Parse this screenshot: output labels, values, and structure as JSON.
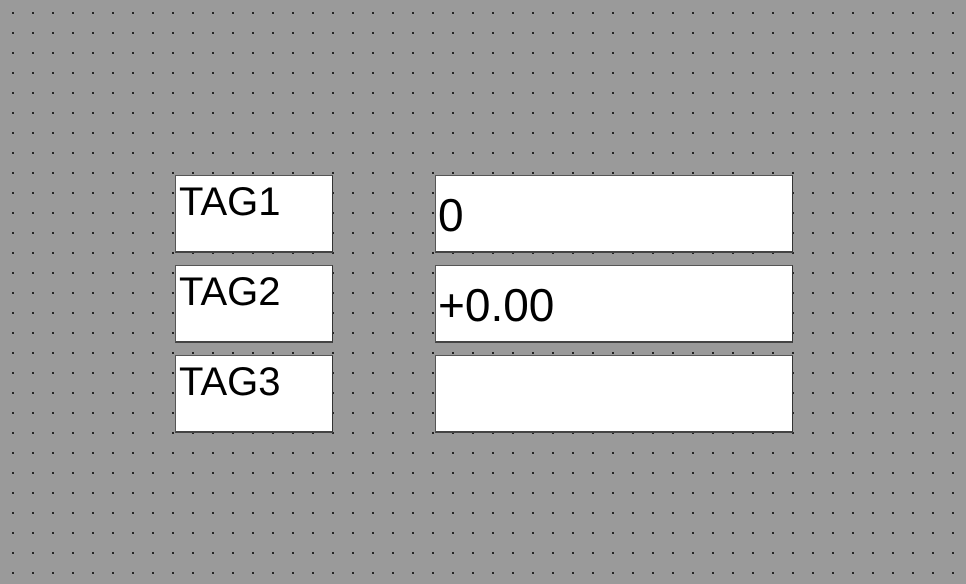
{
  "rows": [
    {
      "tag": "TAG1",
      "value": "0"
    },
    {
      "tag": "TAG2",
      "value": "+0.00"
    },
    {
      "tag": "TAG3",
      "value": ""
    }
  ]
}
